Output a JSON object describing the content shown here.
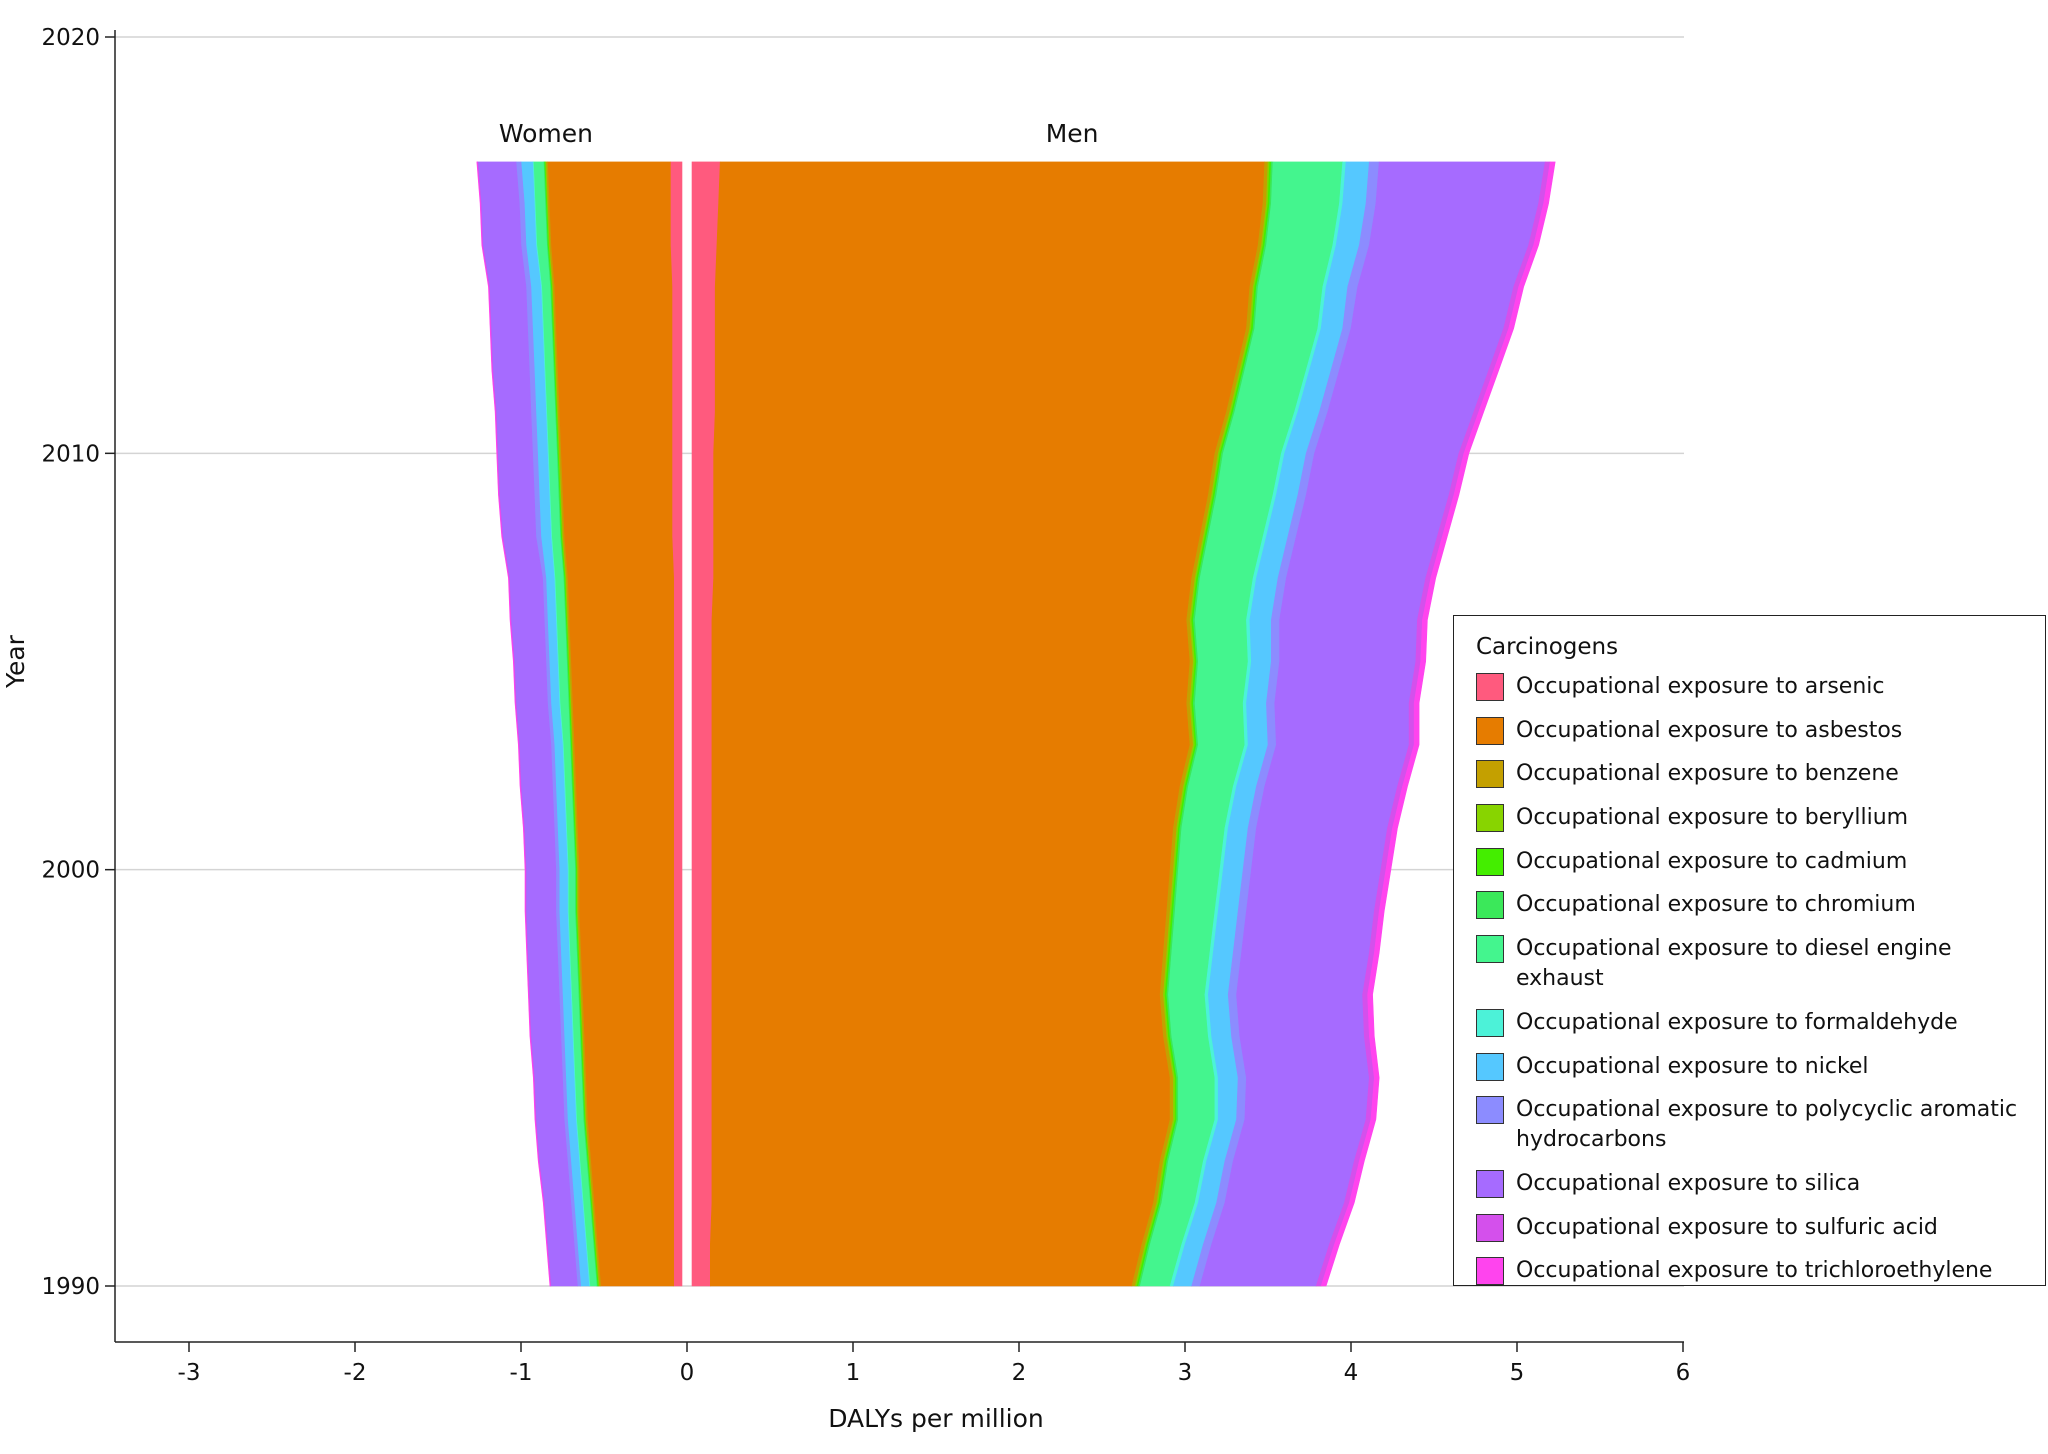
{
  "chart_data": {
    "type": "area",
    "layout": "stacked, back-to-back (women plotted as negative values)",
    "xlabel": "DALYs per million",
    "ylabel": "Year",
    "xlim": [
      -3.5,
      6
    ],
    "ylim": [
      1988.7,
      2020
    ],
    "xticks": [
      -3,
      -2,
      -1,
      0,
      1,
      2,
      3,
      4,
      5,
      6
    ],
    "yticks": [
      1990,
      2000,
      2010,
      2020
    ],
    "grid": "horizontal at y ticks",
    "legend_position": "right",
    "legend_title": "Carcinogens",
    "panel_labels": {
      "women": "Women",
      "men": "Men"
    },
    "years": [
      1990,
      1991,
      1992,
      1993,
      1994,
      1995,
      1996,
      1997,
      1998,
      1999,
      2000,
      2001,
      2002,
      2003,
      2004,
      2005,
      2006,
      2007,
      2008,
      2009,
      2010,
      2011,
      2012,
      2013,
      2014,
      2015,
      2016,
      2017
    ],
    "series": [
      {
        "name": "Occupational exposure to arsenic",
        "color": "#ff5a7e",
        "women": [
          0.05,
          0.05,
          0.05,
          0.05,
          0.05,
          0.05,
          0.05,
          0.05,
          0.05,
          0.05,
          0.05,
          0.05,
          0.05,
          0.05,
          0.05,
          0.05,
          0.05,
          0.05,
          0.06,
          0.06,
          0.06,
          0.06,
          0.06,
          0.06,
          0.06,
          0.07,
          0.07,
          0.07
        ],
        "men": [
          0.11,
          0.11,
          0.12,
          0.12,
          0.12,
          0.12,
          0.12,
          0.12,
          0.12,
          0.12,
          0.12,
          0.12,
          0.12,
          0.12,
          0.12,
          0.12,
          0.12,
          0.13,
          0.13,
          0.13,
          0.13,
          0.14,
          0.14,
          0.14,
          0.14,
          0.15,
          0.16,
          0.17
        ]
      },
      {
        "name": "Occupational exposure to asbestos",
        "color": "#e67c00",
        "women": [
          0.44,
          0.46,
          0.48,
          0.5,
          0.52,
          0.53,
          0.54,
          0.55,
          0.56,
          0.57,
          0.57,
          0.58,
          0.59,
          0.6,
          0.61,
          0.62,
          0.63,
          0.64,
          0.65,
          0.66,
          0.67,
          0.68,
          0.69,
          0.7,
          0.71,
          0.72,
          0.73,
          0.74
        ],
        "men": [
          2.54,
          2.6,
          2.66,
          2.7,
          2.76,
          2.76,
          2.72,
          2.7,
          2.72,
          2.74,
          2.76,
          2.78,
          2.82,
          2.88,
          2.86,
          2.88,
          2.86,
          2.88,
          2.93,
          2.98,
          3.02,
          3.08,
          3.14,
          3.2,
          3.22,
          3.26,
          3.28,
          3.28
        ]
      },
      {
        "name": "Occupational exposure to benzene",
        "color": "#c4a000",
        "women": [
          0.01,
          0.01,
          0.01,
          0.01,
          0.01,
          0.01,
          0.01,
          0.01,
          0.01,
          0.01,
          0.01,
          0.01,
          0.01,
          0.01,
          0.01,
          0.01,
          0.01,
          0.01,
          0.01,
          0.01,
          0.01,
          0.01,
          0.01,
          0.01,
          0.01,
          0.01,
          0.01,
          0.01
        ],
        "men": [
          0.02,
          0.02,
          0.02,
          0.02,
          0.02,
          0.02,
          0.02,
          0.02,
          0.02,
          0.02,
          0.02,
          0.02,
          0.02,
          0.02,
          0.02,
          0.02,
          0.02,
          0.02,
          0.02,
          0.02,
          0.02,
          0.02,
          0.02,
          0.02,
          0.02,
          0.02,
          0.02,
          0.02
        ]
      },
      {
        "name": "Occupational exposure to beryllium",
        "color": "#88d400",
        "women": [
          0.005,
          0.005,
          0.005,
          0.005,
          0.005,
          0.005,
          0.005,
          0.005,
          0.005,
          0.005,
          0.005,
          0.005,
          0.005,
          0.005,
          0.005,
          0.005,
          0.005,
          0.005,
          0.005,
          0.005,
          0.005,
          0.005,
          0.005,
          0.005,
          0.005,
          0.005,
          0.005,
          0.005
        ],
        "men": [
          0.01,
          0.01,
          0.01,
          0.01,
          0.01,
          0.01,
          0.01,
          0.01,
          0.01,
          0.01,
          0.01,
          0.01,
          0.01,
          0.01,
          0.01,
          0.01,
          0.01,
          0.01,
          0.01,
          0.01,
          0.01,
          0.01,
          0.01,
          0.01,
          0.01,
          0.01,
          0.01,
          0.01
        ]
      },
      {
        "name": "Occupational exposure to cadmium",
        "color": "#44ee00",
        "women": [
          0.005,
          0.005,
          0.005,
          0.005,
          0.005,
          0.005,
          0.005,
          0.005,
          0.005,
          0.005,
          0.005,
          0.005,
          0.005,
          0.005,
          0.005,
          0.005,
          0.005,
          0.005,
          0.005,
          0.005,
          0.005,
          0.005,
          0.005,
          0.005,
          0.005,
          0.005,
          0.005,
          0.005
        ],
        "men": [
          0.01,
          0.01,
          0.01,
          0.01,
          0.01,
          0.01,
          0.01,
          0.01,
          0.01,
          0.01,
          0.01,
          0.01,
          0.01,
          0.01,
          0.01,
          0.01,
          0.01,
          0.01,
          0.01,
          0.01,
          0.01,
          0.01,
          0.01,
          0.01,
          0.01,
          0.01,
          0.01,
          0.01
        ]
      },
      {
        "name": "Occupational exposure to chromium",
        "color": "#3be85a",
        "women": [
          0.005,
          0.005,
          0.005,
          0.005,
          0.005,
          0.005,
          0.005,
          0.005,
          0.005,
          0.005,
          0.005,
          0.005,
          0.005,
          0.005,
          0.005,
          0.005,
          0.005,
          0.005,
          0.005,
          0.005,
          0.005,
          0.005,
          0.005,
          0.005,
          0.005,
          0.005,
          0.005,
          0.005
        ],
        "men": [
          0.01,
          0.01,
          0.01,
          0.01,
          0.01,
          0.01,
          0.01,
          0.01,
          0.01,
          0.01,
          0.01,
          0.01,
          0.01,
          0.01,
          0.01,
          0.01,
          0.01,
          0.01,
          0.01,
          0.01,
          0.01,
          0.01,
          0.01,
          0.01,
          0.01,
          0.01,
          0.01,
          0.01
        ]
      },
      {
        "name": "Occupational exposure to diesel engine exhaust",
        "color": "#44f58e",
        "women": [
          0.04,
          0.04,
          0.04,
          0.04,
          0.04,
          0.04,
          0.04,
          0.04,
          0.04,
          0.04,
          0.04,
          0.04,
          0.04,
          0.04,
          0.05,
          0.05,
          0.05,
          0.05,
          0.05,
          0.05,
          0.05,
          0.05,
          0.05,
          0.05,
          0.05,
          0.06,
          0.06,
          0.06
        ],
        "men": [
          0.18,
          0.19,
          0.2,
          0.21,
          0.22,
          0.22,
          0.22,
          0.22,
          0.23,
          0.24,
          0.25,
          0.26,
          0.27,
          0.28,
          0.29,
          0.3,
          0.31,
          0.32,
          0.33,
          0.34,
          0.35,
          0.36,
          0.37,
          0.38,
          0.39,
          0.4,
          0.41,
          0.42
        ]
      },
      {
        "name": "Occupational exposure to formaldehyde",
        "color": "#4cf2d8",
        "women": [
          0.005,
          0.005,
          0.005,
          0.005,
          0.005,
          0.005,
          0.005,
          0.005,
          0.005,
          0.005,
          0.005,
          0.005,
          0.005,
          0.005,
          0.005,
          0.005,
          0.005,
          0.005,
          0.005,
          0.005,
          0.005,
          0.005,
          0.005,
          0.005,
          0.005,
          0.005,
          0.005,
          0.005
        ],
        "men": [
          0.02,
          0.02,
          0.02,
          0.02,
          0.02,
          0.02,
          0.02,
          0.02,
          0.02,
          0.02,
          0.02,
          0.02,
          0.02,
          0.02,
          0.02,
          0.02,
          0.02,
          0.02,
          0.02,
          0.02,
          0.02,
          0.02,
          0.02,
          0.02,
          0.02,
          0.02,
          0.02,
          0.02
        ]
      },
      {
        "name": "Occupational exposure to nickel",
        "color": "#55c8ff",
        "women": [
          0.05,
          0.05,
          0.05,
          0.05,
          0.05,
          0.05,
          0.05,
          0.05,
          0.05,
          0.05,
          0.05,
          0.05,
          0.05,
          0.05,
          0.05,
          0.05,
          0.05,
          0.05,
          0.06,
          0.06,
          0.06,
          0.06,
          0.06,
          0.06,
          0.06,
          0.06,
          0.06,
          0.07
        ],
        "men": [
          0.11,
          0.11,
          0.11,
          0.11,
          0.11,
          0.12,
          0.12,
          0.12,
          0.12,
          0.12,
          0.12,
          0.12,
          0.12,
          0.12,
          0.12,
          0.12,
          0.13,
          0.13,
          0.13,
          0.13,
          0.13,
          0.13,
          0.13,
          0.13,
          0.13,
          0.14,
          0.14,
          0.14
        ]
      },
      {
        "name": "Occupational exposure to polycyclic aromatic hydrocarbons",
        "color": "#8c8cff",
        "women": [
          0.02,
          0.02,
          0.02,
          0.02,
          0.02,
          0.02,
          0.02,
          0.02,
          0.02,
          0.02,
          0.02,
          0.02,
          0.02,
          0.02,
          0.02,
          0.02,
          0.02,
          0.02,
          0.03,
          0.03,
          0.03,
          0.03,
          0.03,
          0.03,
          0.03,
          0.03,
          0.03,
          0.03
        ],
        "men": [
          0.05,
          0.05,
          0.05,
          0.05,
          0.05,
          0.05,
          0.05,
          0.05,
          0.05,
          0.05,
          0.05,
          0.05,
          0.05,
          0.05,
          0.05,
          0.05,
          0.05,
          0.05,
          0.05,
          0.05,
          0.05,
          0.05,
          0.05,
          0.05,
          0.06,
          0.06,
          0.06,
          0.06
        ]
      },
      {
        "name": "Occupational exposure to silica",
        "color": "#a66bff",
        "women": [
          0.16,
          0.16,
          0.16,
          0.17,
          0.17,
          0.17,
          0.18,
          0.18,
          0.18,
          0.18,
          0.18,
          0.18,
          0.19,
          0.19,
          0.19,
          0.19,
          0.2,
          0.2,
          0.2,
          0.21,
          0.21,
          0.21,
          0.22,
          0.22,
          0.22,
          0.23,
          0.23,
          0.23
        ],
        "men": [
          0.7,
          0.71,
          0.72,
          0.73,
          0.73,
          0.74,
          0.75,
          0.76,
          0.77,
          0.77,
          0.78,
          0.79,
          0.8,
          0.8,
          0.81,
          0.82,
          0.83,
          0.84,
          0.85,
          0.86,
          0.87,
          0.88,
          0.9,
          0.92,
          0.94,
          0.96,
          0.98,
          1.0
        ]
      },
      {
        "name": "Occupational exposure to sulfuric acid",
        "color": "#d450ec",
        "women": [
          0.004,
          0.004,
          0.004,
          0.004,
          0.004,
          0.004,
          0.004,
          0.004,
          0.004,
          0.004,
          0.004,
          0.004,
          0.004,
          0.004,
          0.004,
          0.004,
          0.004,
          0.004,
          0.004,
          0.004,
          0.004,
          0.004,
          0.004,
          0.004,
          0.004,
          0.004,
          0.004,
          0.004
        ],
        "men": [
          0.03,
          0.03,
          0.03,
          0.03,
          0.03,
          0.03,
          0.03,
          0.03,
          0.03,
          0.03,
          0.03,
          0.03,
          0.03,
          0.03,
          0.03,
          0.03,
          0.03,
          0.03,
          0.03,
          0.03,
          0.03,
          0.03,
          0.03,
          0.03,
          0.03,
          0.03,
          0.03,
          0.03
        ]
      },
      {
        "name": "Occupational exposure to trichloroethylene",
        "color": "#ff44ee",
        "women": [
          0.002,
          0.002,
          0.002,
          0.002,
          0.002,
          0.002,
          0.002,
          0.002,
          0.002,
          0.002,
          0.002,
          0.002,
          0.002,
          0.002,
          0.002,
          0.002,
          0.002,
          0.002,
          0.002,
          0.002,
          0.002,
          0.002,
          0.002,
          0.002,
          0.002,
          0.002,
          0.002,
          0.002
        ],
        "men": [
          0.03,
          0.03,
          0.03,
          0.03,
          0.03,
          0.03,
          0.03,
          0.03,
          0.03,
          0.03,
          0.03,
          0.03,
          0.03,
          0.03,
          0.03,
          0.03,
          0.03,
          0.03,
          0.03,
          0.03,
          0.03,
          0.03,
          0.03,
          0.03,
          0.03,
          0.03,
          0.03,
          0.03
        ]
      }
    ]
  }
}
